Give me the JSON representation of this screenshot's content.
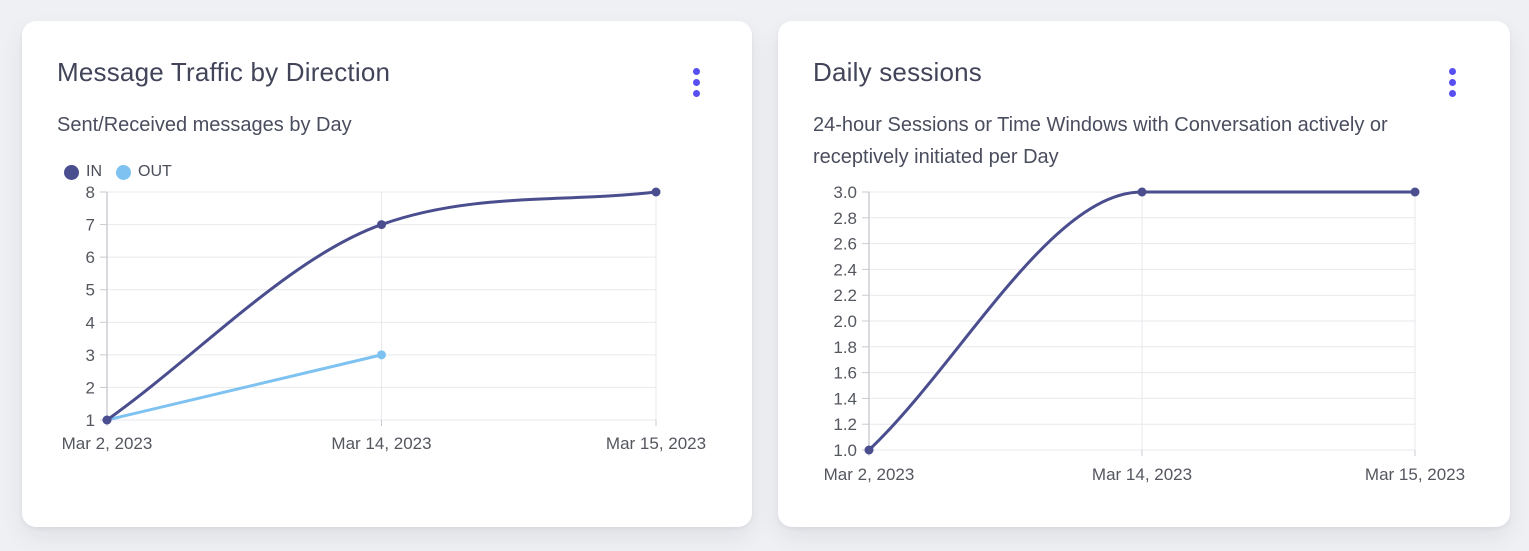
{
  "colors": {
    "page_background": "#eef0f3",
    "card_background": "#ffffff",
    "accent_menu": "#584ff2",
    "grid_line": "#e8e9ec",
    "axis_line": "#c9cbd1",
    "tick_text": "#55575f",
    "title_text": "#42455a",
    "subtitle_text": "#4a4d5e",
    "legend_text": "#4b4e5a",
    "series_in": "#4a4d8e",
    "series_out": "#7ec2f2"
  },
  "icons": {
    "card_menu": "kebab-menu-icon"
  },
  "chart_data": [
    {
      "type": "line",
      "title": "Message Traffic by Direction",
      "subtitle": "Sent/Received messages by Day",
      "categories": [
        "Mar 2, 2023",
        "Mar 14, 2023",
        "Mar 15, 2023"
      ],
      "series": [
        {
          "name": "IN",
          "color": "#4a4d8e",
          "values": [
            1,
            7,
            8
          ]
        },
        {
          "name": "OUT",
          "color": "#7ec2f2",
          "values": [
            1,
            3,
            null
          ]
        }
      ],
      "ylim": [
        1,
        8
      ],
      "yticks": [
        {
          "value": 8,
          "label": "8"
        },
        {
          "value": 7,
          "label": "7"
        },
        {
          "value": 6,
          "label": "6"
        },
        {
          "value": 5,
          "label": "5"
        },
        {
          "value": 4,
          "label": "4"
        },
        {
          "value": 3,
          "label": "3"
        },
        {
          "value": 2,
          "label": "2"
        },
        {
          "value": 1,
          "label": "1"
        }
      ],
      "grid": true,
      "smooth": true,
      "legend_position": "top-left"
    },
    {
      "type": "line",
      "title": "Daily sessions",
      "subtitle": "24-hour Sessions or Time Windows with Conversation actively or receptively initiated per Day",
      "categories": [
        "Mar 2, 2023",
        "Mar 14, 2023",
        "Mar 15, 2023"
      ],
      "series": [
        {
          "name": "Daily sessions",
          "color": "#4a4d8e",
          "values": [
            1.0,
            3.0,
            3.0
          ]
        }
      ],
      "ylim": [
        1.0,
        3.0
      ],
      "yticks": [
        {
          "value": 3.0,
          "label": "3.0"
        },
        {
          "value": 2.8,
          "label": "2.8"
        },
        {
          "value": 2.6,
          "label": "2.6"
        },
        {
          "value": 2.4,
          "label": "2.4"
        },
        {
          "value": 2.2,
          "label": "2.2"
        },
        {
          "value": 2.0,
          "label": "2.0"
        },
        {
          "value": 1.8,
          "label": "1.8"
        },
        {
          "value": 1.6,
          "label": "1.6"
        },
        {
          "value": 1.4,
          "label": "1.4"
        },
        {
          "value": 1.2,
          "label": "1.2"
        },
        {
          "value": 1.0,
          "label": "1.0"
        }
      ],
      "grid": true,
      "smooth": true,
      "legend_position": "none"
    }
  ]
}
